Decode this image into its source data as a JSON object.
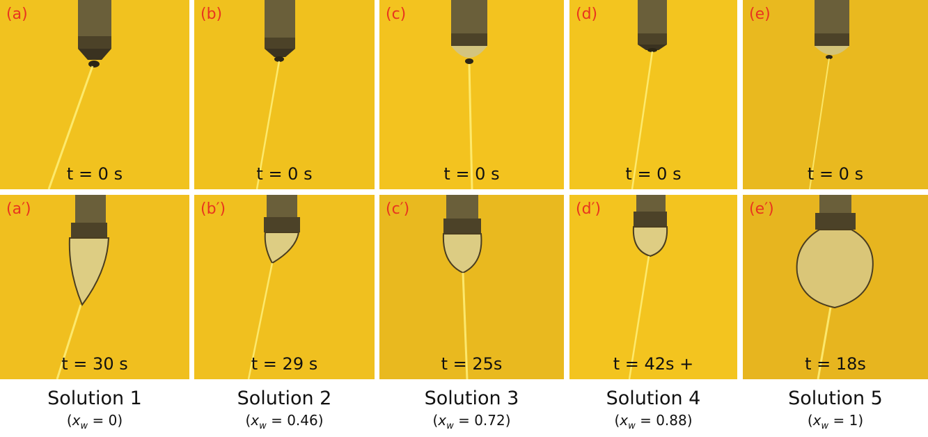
{
  "panels": [
    {
      "label": "(a)",
      "time": "t = 0 s",
      "drop": "none"
    },
    {
      "label": "(b)",
      "time": "t = 0 s",
      "drop": "none"
    },
    {
      "label": "(c)",
      "time": "t = 0 s",
      "drop": "tiny"
    },
    {
      "label": "(d)",
      "time": "t = 0 s",
      "drop": "none"
    },
    {
      "label": "(e)",
      "time": "t = 0 s",
      "drop": "tiny"
    },
    {
      "label": "(a′)",
      "time": "t = 30 s",
      "drop": "cone"
    },
    {
      "label": "(b′)",
      "time": "t = 29 s",
      "drop": "small-cone"
    },
    {
      "label": "(c′)",
      "time": "t = 25s",
      "drop": "round"
    },
    {
      "label": "(d′)",
      "time": "t = 42s +",
      "drop": "small-round"
    },
    {
      "label": "(e′)",
      "time": "t = 18s",
      "drop": "large"
    }
  ],
  "captions": [
    {
      "title": "Solution 1",
      "var": "x",
      "sub": "w",
      "rest": " = 0)"
    },
    {
      "title": "Solution 2",
      "var": "x",
      "sub": "w",
      "rest": " = 0.46)"
    },
    {
      "title": "Solution 3",
      "var": "x",
      "sub": "w",
      "rest": " = 0.72)"
    },
    {
      "title": "Solution 4",
      "var": "x",
      "sub": "w",
      "rest": " = 0.88)"
    },
    {
      "title": "Solution 5",
      "var": "x",
      "sub": "w",
      "rest": " = 1)"
    }
  ],
  "colors": {
    "background": "#f3c21f",
    "label": "#e8341f"
  },
  "icons": {
    "needle": "nozzle-icon",
    "jet": "jet-icon"
  }
}
